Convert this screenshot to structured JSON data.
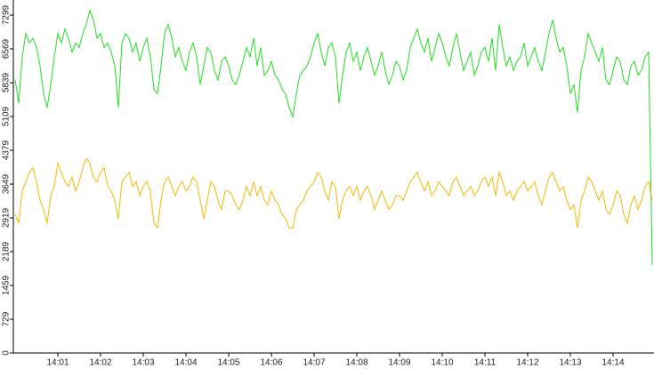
{
  "chart_data": {
    "type": "line",
    "categories": [
      null,
      null,
      null,
      null,
      null,
      null,
      null,
      null,
      null,
      null,
      null,
      null,
      "14:01",
      null,
      null,
      null,
      null,
      null,
      null,
      null,
      null,
      null,
      null,
      null,
      "14:02",
      null,
      null,
      null,
      null,
      null,
      null,
      null,
      null,
      null,
      null,
      null,
      "14:03",
      null,
      null,
      null,
      null,
      null,
      null,
      null,
      null,
      null,
      null,
      null,
      "14:04",
      null,
      null,
      null,
      null,
      null,
      null,
      null,
      null,
      null,
      null,
      null,
      "14:05",
      null,
      null,
      null,
      null,
      null,
      null,
      null,
      null,
      null,
      null,
      null,
      "14:06",
      null,
      null,
      null,
      null,
      null,
      null,
      null,
      null,
      null,
      null,
      null,
      "14:07",
      null,
      null,
      null,
      null,
      null,
      null,
      null,
      null,
      null,
      null,
      null,
      "14:08",
      null,
      null,
      null,
      null,
      null,
      null,
      null,
      null,
      null,
      null,
      null,
      "14:09",
      null,
      null,
      null,
      null,
      null,
      null,
      null,
      null,
      null,
      null,
      null,
      "14:10",
      null,
      null,
      null,
      null,
      null,
      null,
      null,
      null,
      null,
      null,
      null,
      "14:11",
      null,
      null,
      null,
      null,
      null,
      null,
      null,
      null,
      null,
      null,
      null,
      "14:12",
      null,
      null,
      null,
      null,
      null,
      null,
      null,
      null,
      null,
      null,
      null,
      "14:13",
      null,
      null,
      null,
      null,
      null,
      null,
      null,
      null,
      null,
      null,
      null,
      "14:14",
      null,
      null,
      null,
      null,
      null,
      null,
      null,
      null,
      null,
      null,
      null
    ],
    "series": [
      {
        "color": "#22dd22",
        "values": [
          5900,
          5400,
          6400,
          6900,
          6700,
          6800,
          6600,
          6200,
          5600,
          5300,
          5800,
          6400,
          6900,
          6700,
          7000,
          6800,
          6500,
          6700,
          6600,
          6900,
          7100,
          7400,
          7200,
          6800,
          6900,
          6600,
          6700,
          6500,
          6200,
          5300,
          6700,
          6900,
          6800,
          6500,
          6700,
          6300,
          6600,
          6800,
          6400,
          5700,
          5600,
          6200,
          6900,
          7100,
          6800,
          6400,
          6600,
          6300,
          6100,
          6500,
          6700,
          6400,
          5800,
          6200,
          6600,
          6500,
          6100,
          5900,
          6300,
          6400,
          6200,
          5900,
          5800,
          6000,
          6300,
          6600,
          6400,
          6800,
          6200,
          6600,
          6000,
          6100,
          6300,
          6000,
          5900,
          5700,
          5600,
          5300,
          5100,
          5600,
          6000,
          6100,
          6200,
          6400,
          6700,
          6900,
          6500,
          6200,
          6600,
          6700,
          6400,
          5400,
          6000,
          6500,
          6700,
          6300,
          6500,
          6100,
          6400,
          6600,
          6300,
          6000,
          6200,
          6500,
          6100,
          5800,
          6000,
          6300,
          6200,
          5900,
          6100,
          6600,
          6800,
          7000,
          6700,
          6500,
          6800,
          6300,
          6600,
          6900,
          6700,
          6400,
          6200,
          6600,
          6900,
          6500,
          6100,
          6300,
          6500,
          6000,
          6200,
          6500,
          6600,
          6300,
          6800,
          6100,
          7100,
          6600,
          6200,
          6400,
          6100,
          6300,
          6400,
          6700,
          6200,
          6400,
          6600,
          6300,
          6100,
          6500,
          6900,
          7200,
          6800,
          6500,
          6600,
          6200,
          5600,
          5800,
          5200,
          6100,
          6400,
          6900,
          6700,
          6500,
          6300,
          6600,
          5900,
          5800,
          6100,
          6400,
          6300,
          5900,
          5800,
          6200,
          6300,
          6000,
          6100,
          6400,
          6500,
          1900
        ]
      },
      {
        "color": "#f5b800",
        "values": [
          3000,
          2800,
          3500,
          3700,
          3900,
          4000,
          3700,
          3300,
          3100,
          2800,
          3400,
          3600,
          4100,
          3900,
          3700,
          3600,
          3800,
          3500,
          3700,
          4000,
          4200,
          4100,
          3800,
          3700,
          3900,
          4000,
          3600,
          3500,
          3300,
          2900,
          3700,
          3800,
          3900,
          3600,
          3700,
          3400,
          3600,
          3700,
          3500,
          2800,
          2700,
          3300,
          3700,
          3800,
          3600,
          3400,
          3600,
          3700,
          3500,
          3600,
          3800,
          3700,
          3300,
          2900,
          3300,
          3700,
          3600,
          3300,
          3100,
          3500,
          3500,
          3400,
          3200,
          3100,
          3300,
          3600,
          3400,
          3700,
          3400,
          3600,
          3300,
          3200,
          3500,
          3300,
          3200,
          3000,
          2900,
          2700,
          2700,
          3100,
          3200,
          3300,
          3500,
          3600,
          3700,
          3900,
          3800,
          3500,
          3300,
          3700,
          3600,
          2900,
          3300,
          3500,
          3600,
          3400,
          3600,
          3300,
          3500,
          3600,
          3400,
          3100,
          3300,
          3500,
          3300,
          3100,
          3200,
          3400,
          3400,
          3300,
          3500,
          3700,
          3800,
          3900,
          3700,
          3500,
          3700,
          3400,
          3500,
          3700,
          3600,
          3500,
          3400,
          3700,
          3800,
          3600,
          3400,
          3500,
          3600,
          3400,
          3500,
          3700,
          3800,
          3600,
          3800,
          3400,
          3900,
          3700,
          3400,
          3500,
          3300,
          3500,
          3600,
          3700,
          3500,
          3600,
          3700,
          3400,
          3200,
          3500,
          3800,
          3900,
          3700,
          3500,
          3600,
          3300,
          3100,
          3200,
          2700,
          3300,
          3500,
          3800,
          3700,
          3500,
          3300,
          3500,
          3100,
          3000,
          3200,
          3500,
          3400,
          3000,
          2800,
          3200,
          3400,
          3100,
          3300,
          3600,
          3700,
          3300
        ]
      }
    ],
    "ylim": [
      0,
      7626
    ],
    "yticks": [
      0,
      729,
      1459,
      2189,
      2919,
      3649,
      4379,
      5109,
      5839,
      6569,
      7299
    ]
  }
}
